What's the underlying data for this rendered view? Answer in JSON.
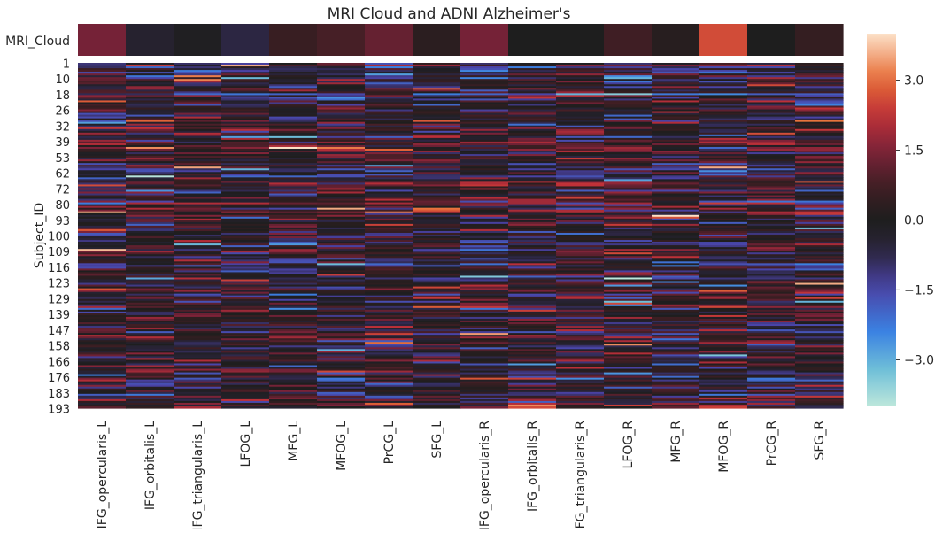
{
  "chart_data": [
    {
      "type": "heatmap",
      "title": "MRI Cloud and ADNI Alzheimer's",
      "rows": [
        "MRI_Cloud"
      ],
      "columns": [
        "IFG_opercularis_L",
        "IFG_orbitalis_L",
        "IFG_triangularis_L",
        "LFOG_L",
        "MFG_L",
        "MFOG_L",
        "PrCG_L",
        "SFG_L",
        "IFG_opercularis_R",
        "IFG_orbitalis_R",
        "IFG_triangularis_R",
        "LFOG_R",
        "MFG_R",
        "MFOG_R",
        "PrCG_R",
        "SFG_R"
      ],
      "values": [
        [
          1.4,
          -0.4,
          -0.1,
          -0.7,
          0.6,
          0.8,
          1.2,
          0.3,
          1.4,
          0.0,
          0.0,
          0.7,
          0.2,
          2.6,
          0.0,
          0.5
        ]
      ]
    },
    {
      "type": "heatmap",
      "ylabel": "Subject_ID",
      "n_rows": 193,
      "row_tick_labels": [
        "1",
        "10",
        "18",
        "26",
        "32",
        "39",
        "53",
        "62",
        "72",
        "80",
        "93",
        "100",
        "109",
        "116",
        "123",
        "129",
        "139",
        "147",
        "158",
        "166",
        "176",
        "183",
        "193"
      ],
      "columns": [
        "IFG_opercularis_L",
        "IFG_orbitalis_L",
        "IFG_triangularis_L",
        "LFOG_L",
        "MFG_L",
        "MFOG_L",
        "PrCG_L",
        "SFG_L",
        "IFG_opercularis_R",
        "IFG_orbitalis_R",
        "IFG_triangularis_R",
        "LFOG_R",
        "MFG_R",
        "MFOG_R",
        "PrCG_R",
        "SFG_R"
      ],
      "value_range": [
        -4.0,
        4.0
      ],
      "values_note": "per-subject z-scores (193 x 16) shown by cell color"
    }
  ],
  "colorbar": {
    "colormap": "icefire",
    "range": [
      -4.0,
      4.0
    ],
    "ticks": [
      3.0,
      1.5,
      0.0,
      -1.5,
      -3.0
    ],
    "tick_labels": [
      "3.0",
      "1.5",
      "0.0",
      "−1.5",
      "−3.0"
    ]
  },
  "colors": {
    "background": "#ffffff",
    "text": "#262626"
  }
}
